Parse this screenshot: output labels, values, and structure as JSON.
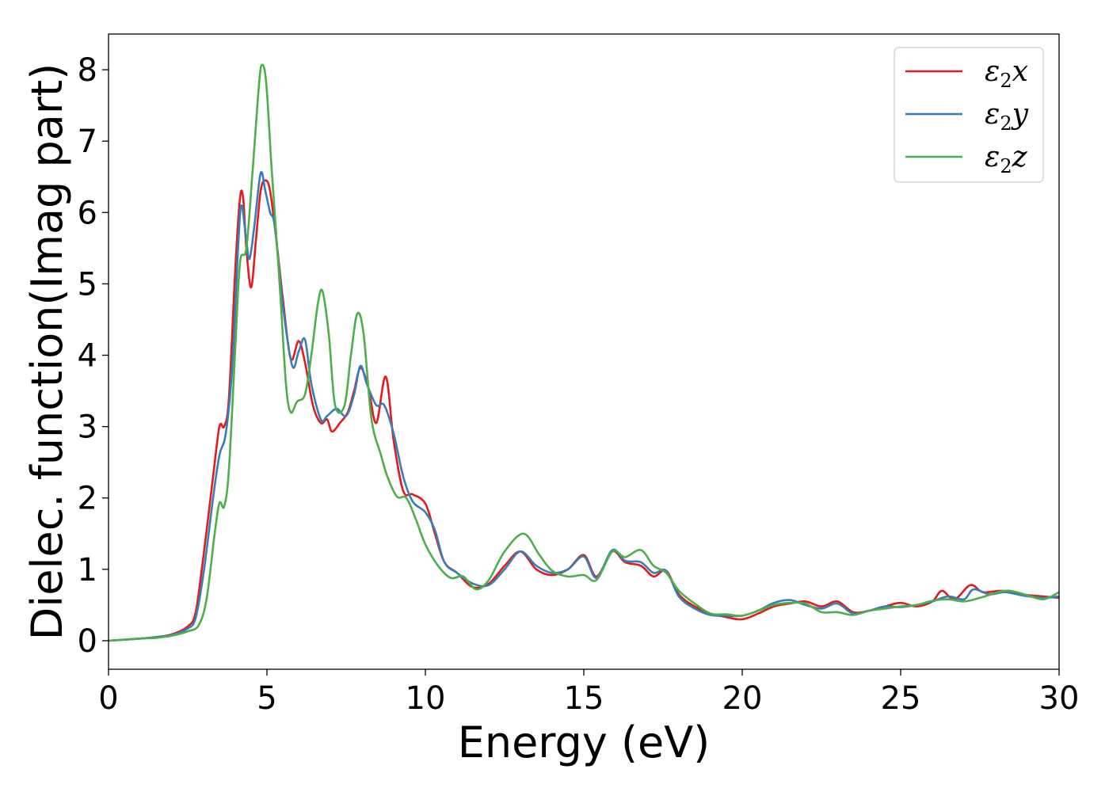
{
  "chart_data": {
    "type": "line",
    "title": "",
    "xlabel": "Energy (eV)",
    "ylabel": "Dielec. function(Imag part)",
    "xlim": [
      0,
      30
    ],
    "ylim": [
      -0.4,
      8.5
    ],
    "xticks": [
      0,
      5,
      10,
      15,
      20,
      25,
      30
    ],
    "yticks": [
      0,
      1,
      2,
      3,
      4,
      5,
      6,
      7,
      8
    ],
    "grid": false,
    "legend_position": "top-right",
    "series": [
      {
        "name": "ε2x",
        "legend_main": "ε",
        "legend_sub": "2",
        "legend_suffix": "x",
        "color": "#e41a1c",
        "points": [
          [
            0,
            0.0
          ],
          [
            1,
            0.03
          ],
          [
            1.5,
            0.05
          ],
          [
            2,
            0.09
          ],
          [
            2.5,
            0.2
          ],
          [
            2.75,
            0.4
          ],
          [
            3,
            1.2
          ],
          [
            3.3,
            2.3
          ],
          [
            3.5,
            3.0
          ],
          [
            3.65,
            3.0
          ],
          [
            3.8,
            3.4
          ],
          [
            4.0,
            5.2
          ],
          [
            4.15,
            6.2
          ],
          [
            4.25,
            6.2
          ],
          [
            4.35,
            5.5
          ],
          [
            4.5,
            4.95
          ],
          [
            4.65,
            5.6
          ],
          [
            4.8,
            6.3
          ],
          [
            4.95,
            6.45
          ],
          [
            5.1,
            6.3
          ],
          [
            5.3,
            5.6
          ],
          [
            5.5,
            4.8
          ],
          [
            5.75,
            3.95
          ],
          [
            6.0,
            4.2
          ],
          [
            6.2,
            3.9
          ],
          [
            6.45,
            3.3
          ],
          [
            6.7,
            3.05
          ],
          [
            6.9,
            3.1
          ],
          [
            7.05,
            2.93
          ],
          [
            7.3,
            3.05
          ],
          [
            7.55,
            3.2
          ],
          [
            7.75,
            3.5
          ],
          [
            7.95,
            3.82
          ],
          [
            8.2,
            3.55
          ],
          [
            8.45,
            3.05
          ],
          [
            8.75,
            3.7
          ],
          [
            9.0,
            2.8
          ],
          [
            9.3,
            2.1
          ],
          [
            9.6,
            2.05
          ],
          [
            10.0,
            1.92
          ],
          [
            10.3,
            1.5
          ],
          [
            10.6,
            1.1
          ],
          [
            11.0,
            0.95
          ],
          [
            11.5,
            0.75
          ],
          [
            12.0,
            0.8
          ],
          [
            12.5,
            1.05
          ],
          [
            13.0,
            1.25
          ],
          [
            13.5,
            1.0
          ],
          [
            14.0,
            0.92
          ],
          [
            14.5,
            1.0
          ],
          [
            15.0,
            1.2
          ],
          [
            15.4,
            0.9
          ],
          [
            15.9,
            1.25
          ],
          [
            16.3,
            1.1
          ],
          [
            16.8,
            1.05
          ],
          [
            17.2,
            0.9
          ],
          [
            17.6,
            0.98
          ],
          [
            18.0,
            0.65
          ],
          [
            18.5,
            0.48
          ],
          [
            19.0,
            0.38
          ],
          [
            19.5,
            0.33
          ],
          [
            20.0,
            0.3
          ],
          [
            20.5,
            0.38
          ],
          [
            21.0,
            0.48
          ],
          [
            21.5,
            0.52
          ],
          [
            22.0,
            0.55
          ],
          [
            22.5,
            0.48
          ],
          [
            23.0,
            0.55
          ],
          [
            23.5,
            0.4
          ],
          [
            24.0,
            0.42
          ],
          [
            24.5,
            0.48
          ],
          [
            25.0,
            0.53
          ],
          [
            25.5,
            0.48
          ],
          [
            26.0,
            0.55
          ],
          [
            26.3,
            0.7
          ],
          [
            26.7,
            0.58
          ],
          [
            27.2,
            0.78
          ],
          [
            27.6,
            0.68
          ],
          [
            28.2,
            0.7
          ],
          [
            28.8,
            0.65
          ],
          [
            29.5,
            0.62
          ],
          [
            30.0,
            0.6
          ]
        ]
      },
      {
        "name": "ε2y",
        "legend_main": "ε",
        "legend_sub": "2",
        "legend_suffix": "y",
        "color": "#377eb8",
        "points": [
          [
            0,
            0.0
          ],
          [
            1,
            0.03
          ],
          [
            1.5,
            0.05
          ],
          [
            2,
            0.08
          ],
          [
            2.5,
            0.17
          ],
          [
            2.75,
            0.32
          ],
          [
            3.0,
            0.95
          ],
          [
            3.3,
            2.0
          ],
          [
            3.5,
            2.6
          ],
          [
            3.7,
            2.9
          ],
          [
            3.9,
            3.8
          ],
          [
            4.1,
            5.6
          ],
          [
            4.2,
            6.1
          ],
          [
            4.35,
            5.6
          ],
          [
            4.45,
            5.35
          ],
          [
            4.6,
            5.8
          ],
          [
            4.8,
            6.55
          ],
          [
            4.95,
            6.3
          ],
          [
            5.1,
            6.0
          ],
          [
            5.25,
            5.8
          ],
          [
            5.5,
            4.7
          ],
          [
            5.8,
            3.85
          ],
          [
            6.0,
            4.05
          ],
          [
            6.2,
            4.22
          ],
          [
            6.4,
            3.6
          ],
          [
            6.7,
            3.1
          ],
          [
            6.9,
            3.15
          ],
          [
            7.2,
            3.25
          ],
          [
            7.5,
            3.15
          ],
          [
            7.75,
            3.45
          ],
          [
            7.95,
            3.85
          ],
          [
            8.15,
            3.6
          ],
          [
            8.45,
            3.3
          ],
          [
            8.7,
            3.3
          ],
          [
            9.0,
            2.9
          ],
          [
            9.3,
            2.3
          ],
          [
            9.6,
            1.95
          ],
          [
            10.0,
            1.8
          ],
          [
            10.3,
            1.55
          ],
          [
            10.6,
            1.1
          ],
          [
            11.0,
            0.95
          ],
          [
            11.5,
            0.8
          ],
          [
            12.0,
            0.78
          ],
          [
            12.5,
            1.0
          ],
          [
            13.0,
            1.25
          ],
          [
            13.5,
            1.05
          ],
          [
            14.0,
            0.95
          ],
          [
            14.5,
            1.0
          ],
          [
            15.0,
            1.18
          ],
          [
            15.4,
            0.88
          ],
          [
            15.9,
            1.27
          ],
          [
            16.3,
            1.12
          ],
          [
            16.8,
            1.1
          ],
          [
            17.2,
            0.95
          ],
          [
            17.6,
            0.98
          ],
          [
            18.0,
            0.62
          ],
          [
            18.5,
            0.45
          ],
          [
            19.0,
            0.36
          ],
          [
            19.5,
            0.35
          ],
          [
            20.0,
            0.35
          ],
          [
            20.5,
            0.42
          ],
          [
            21.0,
            0.53
          ],
          [
            21.5,
            0.57
          ],
          [
            22.0,
            0.5
          ],
          [
            22.5,
            0.45
          ],
          [
            23.0,
            0.52
          ],
          [
            23.5,
            0.38
          ],
          [
            24.0,
            0.42
          ],
          [
            24.5,
            0.48
          ],
          [
            25.0,
            0.47
          ],
          [
            25.5,
            0.5
          ],
          [
            26.0,
            0.55
          ],
          [
            26.5,
            0.62
          ],
          [
            27.0,
            0.58
          ],
          [
            27.3,
            0.72
          ],
          [
            27.8,
            0.65
          ],
          [
            28.3,
            0.68
          ],
          [
            28.9,
            0.63
          ],
          [
            29.5,
            0.6
          ],
          [
            30.0,
            0.62
          ]
        ]
      },
      {
        "name": "ε2z",
        "legend_main": "ε",
        "legend_sub": "2",
        "legend_suffix": "z",
        "color": "#4daf4a",
        "points": [
          [
            0,
            0.0
          ],
          [
            1,
            0.03
          ],
          [
            1.5,
            0.04
          ],
          [
            2,
            0.07
          ],
          [
            2.5,
            0.13
          ],
          [
            2.85,
            0.22
          ],
          [
            3.1,
            0.6
          ],
          [
            3.35,
            1.5
          ],
          [
            3.5,
            1.93
          ],
          [
            3.65,
            1.88
          ],
          [
            3.8,
            2.4
          ],
          [
            4.0,
            4.1
          ],
          [
            4.15,
            5.3
          ],
          [
            4.35,
            5.5
          ],
          [
            4.55,
            6.6
          ],
          [
            4.75,
            7.8
          ],
          [
            4.85,
            8.07
          ],
          [
            4.98,
            7.8
          ],
          [
            5.15,
            6.6
          ],
          [
            5.4,
            5.0
          ],
          [
            5.6,
            3.6
          ],
          [
            5.75,
            3.2
          ],
          [
            5.95,
            3.35
          ],
          [
            6.2,
            3.45
          ],
          [
            6.4,
            4.0
          ],
          [
            6.6,
            4.7
          ],
          [
            6.75,
            4.9
          ],
          [
            6.95,
            4.3
          ],
          [
            7.15,
            3.3
          ],
          [
            7.45,
            3.3
          ],
          [
            7.65,
            4.0
          ],
          [
            7.85,
            4.58
          ],
          [
            8.05,
            4.3
          ],
          [
            8.3,
            3.1
          ],
          [
            8.6,
            2.6
          ],
          [
            8.8,
            2.3
          ],
          [
            9.1,
            2.02
          ],
          [
            9.4,
            2.0
          ],
          [
            9.7,
            1.7
          ],
          [
            10.0,
            1.35
          ],
          [
            10.4,
            1.05
          ],
          [
            10.8,
            0.88
          ],
          [
            11.2,
            0.9
          ],
          [
            11.6,
            0.72
          ],
          [
            12.0,
            0.85
          ],
          [
            12.5,
            1.25
          ],
          [
            13.1,
            1.5
          ],
          [
            13.6,
            1.2
          ],
          [
            14.0,
            0.98
          ],
          [
            14.5,
            0.9
          ],
          [
            15.0,
            0.92
          ],
          [
            15.4,
            0.85
          ],
          [
            15.9,
            1.25
          ],
          [
            16.3,
            1.17
          ],
          [
            16.8,
            1.27
          ],
          [
            17.2,
            1.05
          ],
          [
            17.6,
            0.95
          ],
          [
            18.0,
            0.7
          ],
          [
            18.5,
            0.52
          ],
          [
            19.0,
            0.38
          ],
          [
            19.5,
            0.37
          ],
          [
            20.0,
            0.35
          ],
          [
            20.5,
            0.42
          ],
          [
            21.0,
            0.5
          ],
          [
            21.5,
            0.53
          ],
          [
            22.0,
            0.52
          ],
          [
            22.5,
            0.4
          ],
          [
            23.0,
            0.4
          ],
          [
            23.5,
            0.36
          ],
          [
            24.0,
            0.42
          ],
          [
            24.5,
            0.45
          ],
          [
            25.0,
            0.48
          ],
          [
            25.5,
            0.5
          ],
          [
            26.0,
            0.56
          ],
          [
            26.5,
            0.58
          ],
          [
            27.0,
            0.55
          ],
          [
            27.5,
            0.6
          ],
          [
            28.3,
            0.7
          ],
          [
            28.9,
            0.65
          ],
          [
            29.5,
            0.58
          ],
          [
            30.0,
            0.68
          ]
        ]
      }
    ]
  }
}
